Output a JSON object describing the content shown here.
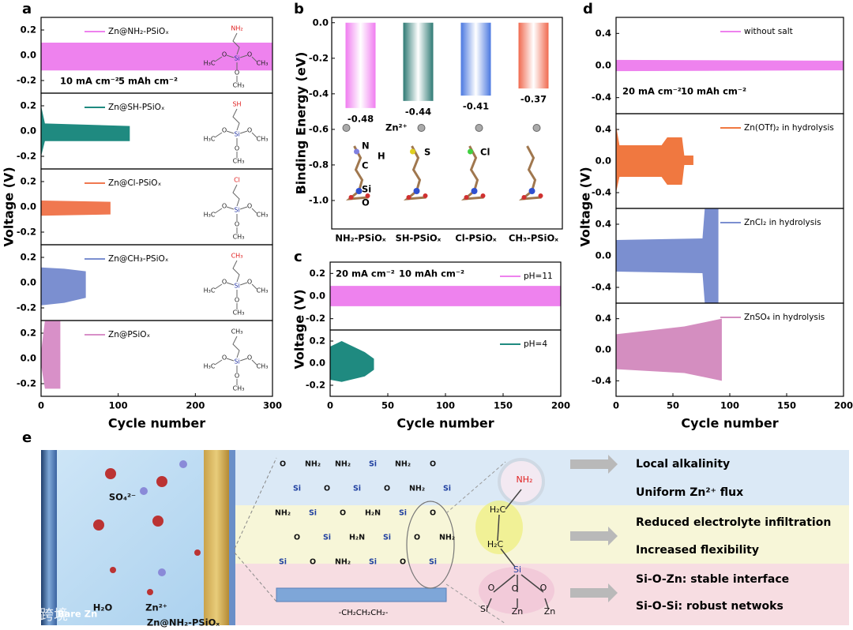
{
  "panel_labels": [
    "a",
    "b",
    "c",
    "d",
    "e"
  ],
  "chart_data": [
    {
      "type": "band",
      "xlabel": "Cycle number",
      "ylabel": "Voltage (V)",
      "xlim": [
        0,
        300
      ],
      "xticks": [
        0,
        100,
        200,
        300
      ],
      "annotations": [
        "10 mA cm⁻²",
        "5 mAh cm⁻²"
      ],
      "subplots": [
        {
          "ylim": [
            -0.3,
            0.3
          ],
          "yticks": [
            0.2,
            {
              "value": 0,
              "label": "0.0"
            },
            -0.2
          ],
          "series": [
            {
              "name": "Zn@NH₂-PSiOₓ",
              "color": "#ee82ee",
              "x": [
                0,
                300
              ],
              "upper": [
                0.1,
                0.1
              ],
              "lower": [
                -0.12,
                -0.12
              ]
            }
          ],
          "structure": {
            "color": "#e02020",
            "labels": [
              "NH₂",
              "Si",
              "O",
              "O",
              "O",
              "H₃C",
              "CH₃",
              "CH₃"
            ]
          }
        },
        {
          "ylim": [
            -0.3,
            0.3
          ],
          "yticks": [
            0.2,
            {
              "value": 0,
              "label": "0.0"
            },
            -0.2
          ],
          "series": [
            {
              "name": "Zn@SH-PSiOₓ",
              "color": "#1f8a80",
              "x": [
                0,
                5,
                115
              ],
              "upper": [
                0.2,
                0.06,
                0.04
              ],
              "lower": [
                -0.2,
                -0.08,
                -0.08
              ]
            }
          ],
          "structure": {
            "color": "#e02020",
            "labels": [
              "SH",
              "Si",
              "O",
              "O",
              "O",
              "H₃C",
              "CH₃",
              "CH₃"
            ]
          }
        },
        {
          "ylim": [
            -0.3,
            0.3
          ],
          "yticks": [
            0.2,
            {
              "value": 0,
              "label": "0.0"
            },
            -0.2
          ],
          "series": [
            {
              "name": "Zn@Cl-PSiOₓ",
              "color": "#f07850",
              "x": [
                0,
                90
              ],
              "upper": [
                0.05,
                0.04
              ],
              "lower": [
                -0.07,
                -0.06
              ]
            }
          ],
          "structure": {
            "color": "#e02020",
            "labels": [
              "Cl",
              "Si",
              "O",
              "O",
              "O",
              "H₃C",
              "CH₃",
              "CH₃"
            ]
          }
        },
        {
          "ylim": [
            -0.3,
            0.3
          ],
          "yticks": [
            0.2,
            {
              "value": 0,
              "label": "0.0"
            },
            -0.2
          ],
          "series": [
            {
              "name": "Zn@CH₃-PSiOₓ",
              "color": "#7b8fd0",
              "x": [
                0,
                30,
                58
              ],
              "upper": [
                0.12,
                0.11,
                0.09
              ],
              "lower": [
                -0.18,
                -0.16,
                -0.12
              ]
            }
          ],
          "structure": {
            "color": "#e02020",
            "labels": [
              "CH₃",
              "Si",
              "O",
              "O",
              "O",
              "H₃C",
              "CH₃",
              "CH₃"
            ]
          }
        },
        {
          "ylim": [
            -0.3,
            0.3
          ],
          "yticks": [
            0.2,
            {
              "value": 0,
              "label": "0.0"
            },
            -0.2
          ],
          "series": [
            {
              "name": "Zn@PSiOₓ",
              "color": "#d890c8",
              "x": [
                0,
                5,
                25
              ],
              "upper": [
                0.05,
                0.3,
                0.3
              ],
              "lower": [
                -0.05,
                -0.24,
                -0.24
              ]
            }
          ],
          "structure": {
            "color": "#222222",
            "labels": [
              "CH₃",
              "Si",
              "O",
              "O",
              "O",
              "H₃C",
              "CH₃",
              "CH₃"
            ]
          }
        }
      ]
    },
    {
      "type": "bar",
      "ylabel": "Binding Energy (eV)",
      "categories": [
        "NH₂-PSiOₓ",
        "SH-PSiOₓ",
        "Cl-PSiOₓ",
        "CH₃-PSiOₓ"
      ],
      "values": [
        -0.48,
        -0.44,
        -0.41,
        -0.37
      ],
      "colors": [
        "#f07cf0",
        "#2e7a74",
        "#4a78e0",
        "#f06a50"
      ],
      "ylim": [
        -1.16,
        0.03
      ],
      "yticks": [
        {
          "value": 0,
          "label": "0.0"
        },
        -0.2,
        -0.4,
        -0.6,
        -0.8,
        {
          "value": -1,
          "label": "-1.0"
        }
      ],
      "atom_labels": [
        "Zn²⁺",
        "N",
        "H",
        "C",
        "Si",
        "O",
        "S",
        "Cl"
      ]
    },
    {
      "type": "band",
      "xlabel": "Cycle number",
      "ylabel": "Voltage (V)",
      "xlim": [
        0,
        200
      ],
      "xticks": [
        0,
        50,
        100,
        150,
        200
      ],
      "annotations": [
        "20 mA cm⁻²",
        "10 mAh cm⁻²"
      ],
      "subplots": [
        {
          "ylim": [
            -0.3,
            0.3
          ],
          "yticks": [
            0.2,
            {
              "value": 0,
              "label": "0.0"
            },
            -0.2
          ],
          "series": [
            {
              "name": "pH=11",
              "color": "#ee82ee",
              "x": [
                0,
                200
              ],
              "upper": [
                0.09,
                0.09
              ],
              "lower": [
                -0.09,
                -0.09
              ]
            }
          ]
        },
        {
          "ylim": [
            -0.3,
            0.3
          ],
          "yticks": [
            0.2,
            {
              "value": 0,
              "label": "0.0"
            },
            -0.2
          ],
          "series": [
            {
              "name": "pH=4",
              "color": "#1f8a80",
              "x": [
                0,
                10,
                30,
                38
              ],
              "upper": [
                0.15,
                0.2,
                0.1,
                0.04
              ],
              "lower": [
                -0.15,
                -0.17,
                -0.12,
                -0.06
              ]
            }
          ]
        }
      ]
    },
    {
      "type": "band",
      "xlabel": "Cycle number",
      "ylabel": "Voltage (V)",
      "xlim": [
        0,
        200
      ],
      "xticks": [
        0,
        50,
        100,
        150,
        200
      ],
      "annotations": [
        "20 mA cm⁻²",
        "10 mAh cm⁻²"
      ],
      "subplots": [
        {
          "ylim": [
            -0.6,
            0.6
          ],
          "yticks": [
            0.4,
            {
              "value": 0,
              "label": "0.0"
            },
            -0.4
          ],
          "series": [
            {
              "name": "without salt",
              "color": "#ee82ee",
              "x": [
                0,
                200
              ],
              "upper": [
                0.07,
                0.06
              ],
              "lower": [
                -0.07,
                -0.06
              ]
            }
          ]
        },
        {
          "ylim": [
            -0.6,
            0.6
          ],
          "yticks": [
            0.4,
            {
              "value": 0,
              "label": "0.0"
            },
            -0.4
          ],
          "series": [
            {
              "name": "Zn(OTf)₂ in hydrolysis",
              "color": "#f07840",
              "x": [
                0,
                3,
                40,
                45,
                58,
                60,
                68
              ],
              "upper": [
                0.45,
                0.2,
                0.2,
                0.3,
                0.3,
                0.07,
                0.07
              ],
              "lower": [
                -0.4,
                -0.2,
                -0.2,
                -0.3,
                -0.3,
                -0.05,
                -0.05
              ]
            }
          ]
        },
        {
          "ylim": [
            -0.6,
            0.6
          ],
          "yticks": [
            0.4,
            {
              "value": 0,
              "label": "0.0"
            },
            -0.4
          ],
          "series": [
            {
              "name": "ZnCl₂ in hydrolysis",
              "color": "#7b8fd0",
              "x": [
                0,
                76,
                78,
                90
              ],
              "upper": [
                0.2,
                0.22,
                0.6,
                0.6
              ],
              "lower": [
                -0.2,
                -0.22,
                -0.6,
                -0.6
              ]
            }
          ]
        },
        {
          "ylim": [
            -0.6,
            0.6
          ],
          "yticks": [
            0.4,
            {
              "value": 0,
              "label": "0.0"
            },
            -0.4
          ],
          "series": [
            {
              "name": "ZnSO₄ in hydrolysis",
              "color": "#d48ec0",
              "x": [
                0,
                60,
                93
              ],
              "upper": [
                0.2,
                0.3,
                0.4
              ],
              "lower": [
                -0.25,
                -0.3,
                -0.4
              ]
            }
          ]
        }
      ]
    }
  ],
  "schematic": {
    "left": [
      "Bare Zn",
      "SO₄²⁻",
      "H₂O",
      "Zn²⁺",
      "Zn@NH₂-PSiOₓ"
    ],
    "linker": "-CH₂CH₂CH₂-",
    "network": [
      "O",
      "NH₂",
      "NH₂",
      "Si",
      "NH₂",
      "O",
      "Si",
      "O",
      "Si",
      "O",
      "NH₂",
      "Si",
      "NH₂",
      "Si",
      "O",
      "H₂N",
      "Si",
      "O",
      "O",
      "Si",
      "H₂N",
      "Si",
      "O",
      "NH₂",
      "Si",
      "O",
      "NH₂",
      "Si",
      "O",
      "Si"
    ],
    "molecule": [
      "NH₂",
      "H₂C",
      "H₂C",
      "Si",
      "O",
      "O",
      "O",
      "Si",
      "Zn",
      "Zn"
    ],
    "effects": [
      "Local alkalinity",
      "Uniform Zn²⁺ flux",
      "Reduced electrolyte infiltration",
      "Increased flexibility",
      "Si-O-Zn: stable interface",
      "Si-O-Si: robust netwoks"
    ]
  },
  "watermark": "大数跨境"
}
